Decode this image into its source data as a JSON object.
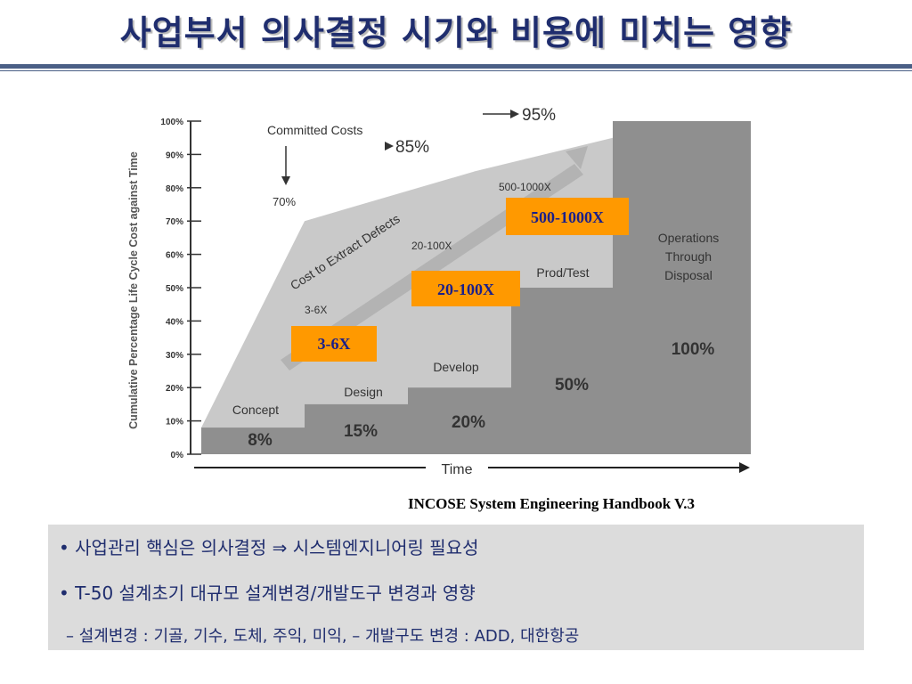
{
  "page": {
    "title": "사업부서 의사결정 시기와 비용에 미치는 영향",
    "source": "INCOSE System Engineering Handbook V.3"
  },
  "notes": {
    "line1": "• 사업관리 핵심은  의사결정 ⇒ 시스템엔지니어링 필요성",
    "line2": "• T-50 설계초기 대규모 설계변경/개발도구 변경과 영향",
    "line3": "– 설계변경 : 기골, 기수, 도체, 주익, 미익,   – 개발구도 변경 : ADD, 대한항공"
  },
  "chart_data": {
    "type": "area",
    "ylabel": "Cumulative Percentage Life Cycle Cost against Time",
    "xlabel": "Time",
    "ylim": [
      0,
      100
    ],
    "yticks": [
      "0%",
      "10%",
      "20%",
      "30%",
      "40%",
      "50%",
      "60%",
      "70%",
      "80%",
      "90%",
      "100%"
    ],
    "phases": [
      {
        "name": "Concept",
        "value": 8,
        "label": "8%"
      },
      {
        "name": "Design",
        "value": 15,
        "label": "15%"
      },
      {
        "name": "Develop",
        "value": 20,
        "label": "20%"
      },
      {
        "name": "Prod/Test",
        "value": 50,
        "label": "50%"
      },
      {
        "name": "Operations Through Disposal",
        "value": 100,
        "label": "100%"
      }
    ],
    "committed_costs": {
      "title": "Committed Costs",
      "points": [
        {
          "phase": 0,
          "value": 70,
          "label": "70%"
        },
        {
          "phase": 2,
          "value": 85,
          "label": "85%"
        },
        {
          "phase": 4,
          "value": 95,
          "label": "95%"
        }
      ]
    },
    "defect_cost": {
      "title": "Cost to Extract Defects",
      "labels": [
        "3-6X",
        "20-100X",
        "500-1000X"
      ]
    },
    "callouts": [
      "3-6X",
      "20-100X",
      "500-1000X"
    ],
    "colors": {
      "actual": "#8f8f8f",
      "committed": "#c9c9c9",
      "callout_bg": "#ff9900",
      "callout_text": "#1a1f8a"
    }
  }
}
